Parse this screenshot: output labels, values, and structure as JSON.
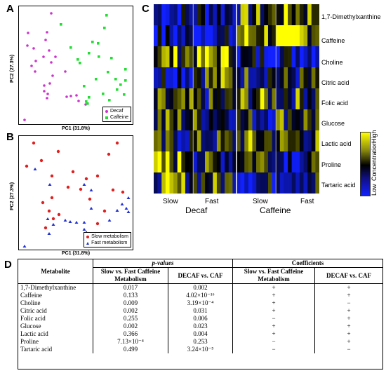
{
  "panels": {
    "a": "A",
    "b": "B",
    "c": "C",
    "d": "D"
  },
  "scatter_a": {
    "xlabel": "PC1 (31.8%)",
    "ylabel": "PC2 (27.3%)",
    "legend": [
      {
        "label": "Decaf",
        "color": "#cc33cc",
        "marker": "circle"
      },
      {
        "label": "Caffeine",
        "color": "#22dd33",
        "marker": "square"
      }
    ]
  },
  "scatter_b": {
    "xlabel": "PC1 (31.8%)",
    "ylabel": "PC2 (27.3%)",
    "legend": [
      {
        "label": "Slow metabolism",
        "color": "#e02020",
        "marker": "circle"
      },
      {
        "label": "Fast metabolism",
        "color": "#2030d0",
        "marker": "triangle"
      }
    ]
  },
  "heatmap": {
    "rows": [
      "1,7-Dimethylxanthine",
      "Caffeine",
      "Choline",
      "Citric acid",
      "Folic acid",
      "Glucose",
      "Lactic acid",
      "Proline",
      "Tartaric acid"
    ],
    "group_sublabels": [
      "Slow",
      "Fast",
      "Slow",
      "Fast"
    ],
    "group_labels": [
      "Decaf",
      "Caffeine"
    ],
    "colorbar": {
      "low": "Low",
      "mid": "Concentration",
      "high": "High"
    },
    "colors": {
      "low": "#1020ff",
      "mid": "#000000",
      "high": "#ffff00"
    }
  },
  "table": {
    "col_metabolite": "Metabolite",
    "group_pvalues": "p-values",
    "group_coeffs": "Coefficients",
    "sub_headers": [
      "Slow vs. Fast Caffeine Metabolism",
      "DECAF vs. CAF",
      "Slow vs. Fast Caffeine Metabolism",
      "DECAF vs. CAF"
    ],
    "rows": [
      {
        "name": "1,7-Dimethylxanthine",
        "p1": "0.017",
        "p2": "0.002",
        "c1": "+",
        "c2": "+"
      },
      {
        "name": "Caffeine",
        "p1": "0.133",
        "p2": "4.02×10⁻¹⁶",
        "c1": "+",
        "c2": "+"
      },
      {
        "name": "Choline",
        "p1": "0.009",
        "p2": "3.19×10⁻⁴",
        "c1": "+",
        "c2": "−"
      },
      {
        "name": "Citric acid",
        "p1": "0.002",
        "p2": "0.031",
        "c1": "+",
        "c2": "+"
      },
      {
        "name": "Folic acid",
        "p1": "0.255",
        "p2": "0.006",
        "c1": "−",
        "c2": "+"
      },
      {
        "name": "Glucose",
        "p1": "0.002",
        "p2": "0.023",
        "c1": "+",
        "c2": "+"
      },
      {
        "name": "Lactic acid",
        "p1": "0.366",
        "p2": "0.004",
        "c1": "+",
        "c2": "+"
      },
      {
        "name": "Proline",
        "p1": "7.13×10⁻⁴",
        "p2": "0.253",
        "c1": "−",
        "c2": "+"
      },
      {
        "name": "Tartaric acid",
        "p1": "0.499",
        "p2": "3.24×10⁻⁵",
        "c1": "−",
        "c2": "−"
      }
    ]
  }
}
